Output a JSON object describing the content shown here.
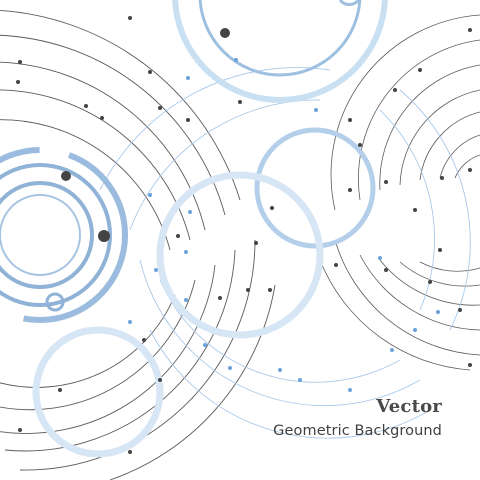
{
  "caption": {
    "title": "Vector",
    "subtitle": "Geometric Background"
  },
  "colors": {
    "background": "#ffffff",
    "line_dark": "#555555",
    "line_light": "#9fc3e6",
    "ring_blue": "#8fb2d6",
    "ring_light": "#c9dff2",
    "dot_dark": "#444444",
    "dot_blue": "#6aa2dc"
  }
}
